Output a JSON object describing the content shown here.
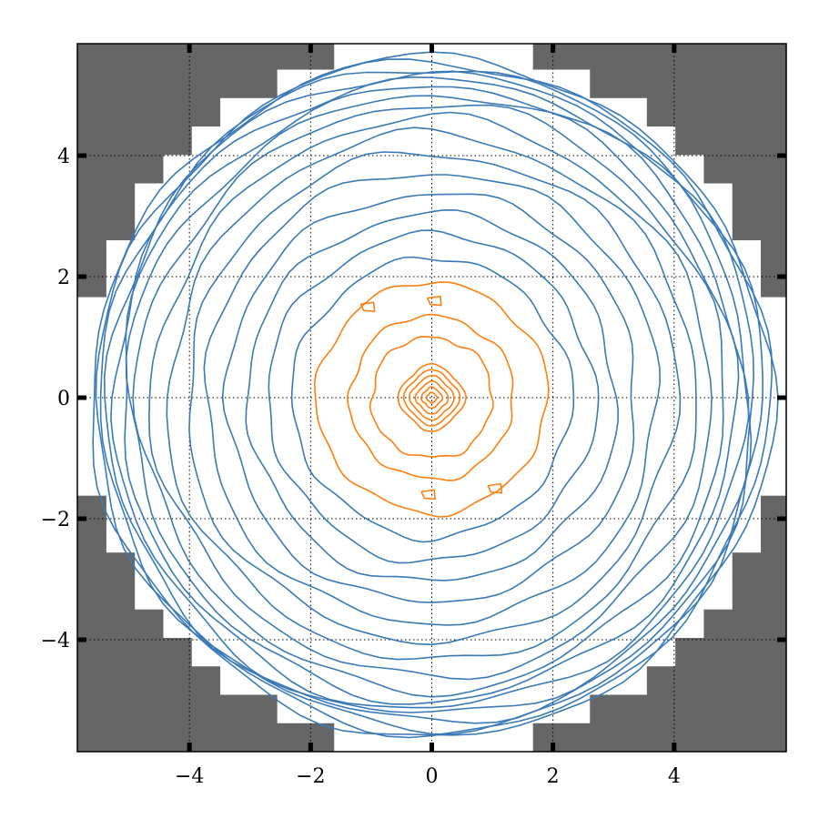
{
  "chart_data": {
    "type": "contour",
    "title": "",
    "xlabel": "",
    "ylabel": "",
    "xlim": [
      -5.85,
      5.85
    ],
    "ylim": [
      -5.85,
      5.85
    ],
    "xticks": [
      -4,
      -2,
      0,
      2,
      4
    ],
    "yticks": [
      -4,
      -2,
      0,
      2,
      4
    ],
    "grid": true,
    "masked_region": {
      "shape": "outside-disk",
      "radius": 5.85,
      "cell_size": 0.47,
      "color": "#666666"
    },
    "colors": {
      "outer_contours": "#3a7ab8",
      "inner_contours": "#ff7f0e",
      "mask": "#666666"
    },
    "series": [
      {
        "group": "inner",
        "color": "#ff7f0e",
        "radii": [
          0.08,
          0.16,
          0.25,
          0.34,
          0.43,
          0.52
        ]
      },
      {
        "group": "inner",
        "color": "#ff7f0e",
        "radii": [
          1.0,
          1.35,
          1.9
        ]
      },
      {
        "group": "outer",
        "color": "#3a7ab8",
        "radii": [
          2.3,
          2.7,
          3.05,
          3.4,
          3.75,
          4.05,
          4.35,
          4.6,
          4.83,
          5.0,
          5.15,
          5.28,
          5.38,
          5.47,
          5.54,
          5.6
        ]
      }
    ],
    "small_islands": [
      {
        "x": -1.05,
        "y": 1.5,
        "color": "#ff7f0e"
      },
      {
        "x": 0.05,
        "y": 1.6,
        "color": "#ff7f0e"
      },
      {
        "x": 1.05,
        "y": -1.5,
        "color": "#ff7f0e"
      },
      {
        "x": -0.05,
        "y": -1.6,
        "color": "#ff7f0e"
      }
    ]
  }
}
